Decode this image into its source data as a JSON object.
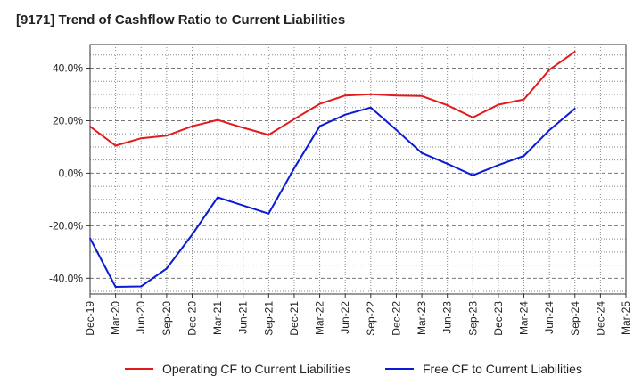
{
  "chart_data": {
    "type": "line",
    "title": "[9171]  Trend of Cashflow Ratio to Current Liabilities",
    "xlabel": "",
    "ylabel": "",
    "categories": [
      "Dec-19",
      "Mar-20",
      "Jun-20",
      "Sep-20",
      "Dec-20",
      "Mar-21",
      "Jun-21",
      "Sep-21",
      "Dec-21",
      "Mar-22",
      "Jun-22",
      "Sep-22",
      "Dec-22",
      "Mar-23",
      "Jun-23",
      "Sep-23",
      "Dec-23",
      "Mar-24",
      "Jun-24",
      "Sep-24",
      "Dec-24",
      "Mar-25"
    ],
    "ylim": [
      -46,
      49
    ],
    "yticks": [
      -40,
      -20,
      0,
      20,
      40
    ],
    "ytick_labels": [
      "-40.0%",
      "-20.0%",
      "0.0%",
      "20.0%",
      "40.0%"
    ],
    "grid": true,
    "legend_position": "bottom",
    "series": [
      {
        "name": "Operating CF to Current Liabilities",
        "color": "#e31a1c",
        "values": [
          17.8,
          10.5,
          13.3,
          14.3,
          17.9,
          20.3,
          17.3,
          14.6,
          20.6,
          26.4,
          29.6,
          30.1,
          29.6,
          29.4,
          25.9,
          21.2,
          26.1,
          28.1,
          39.4,
          46.3,
          null,
          null
        ]
      },
      {
        "name": "Free CF to Current Liabilities",
        "color": "#0a1bd6",
        "values": [
          -24.8,
          -43.3,
          -43.1,
          -36.3,
          -23.4,
          -9.2,
          -12.3,
          -15.4,
          1.9,
          17.9,
          22.3,
          25.0,
          16.5,
          7.7,
          3.6,
          -0.8,
          3.1,
          6.6,
          16.4,
          24.6,
          null,
          null
        ]
      }
    ]
  }
}
